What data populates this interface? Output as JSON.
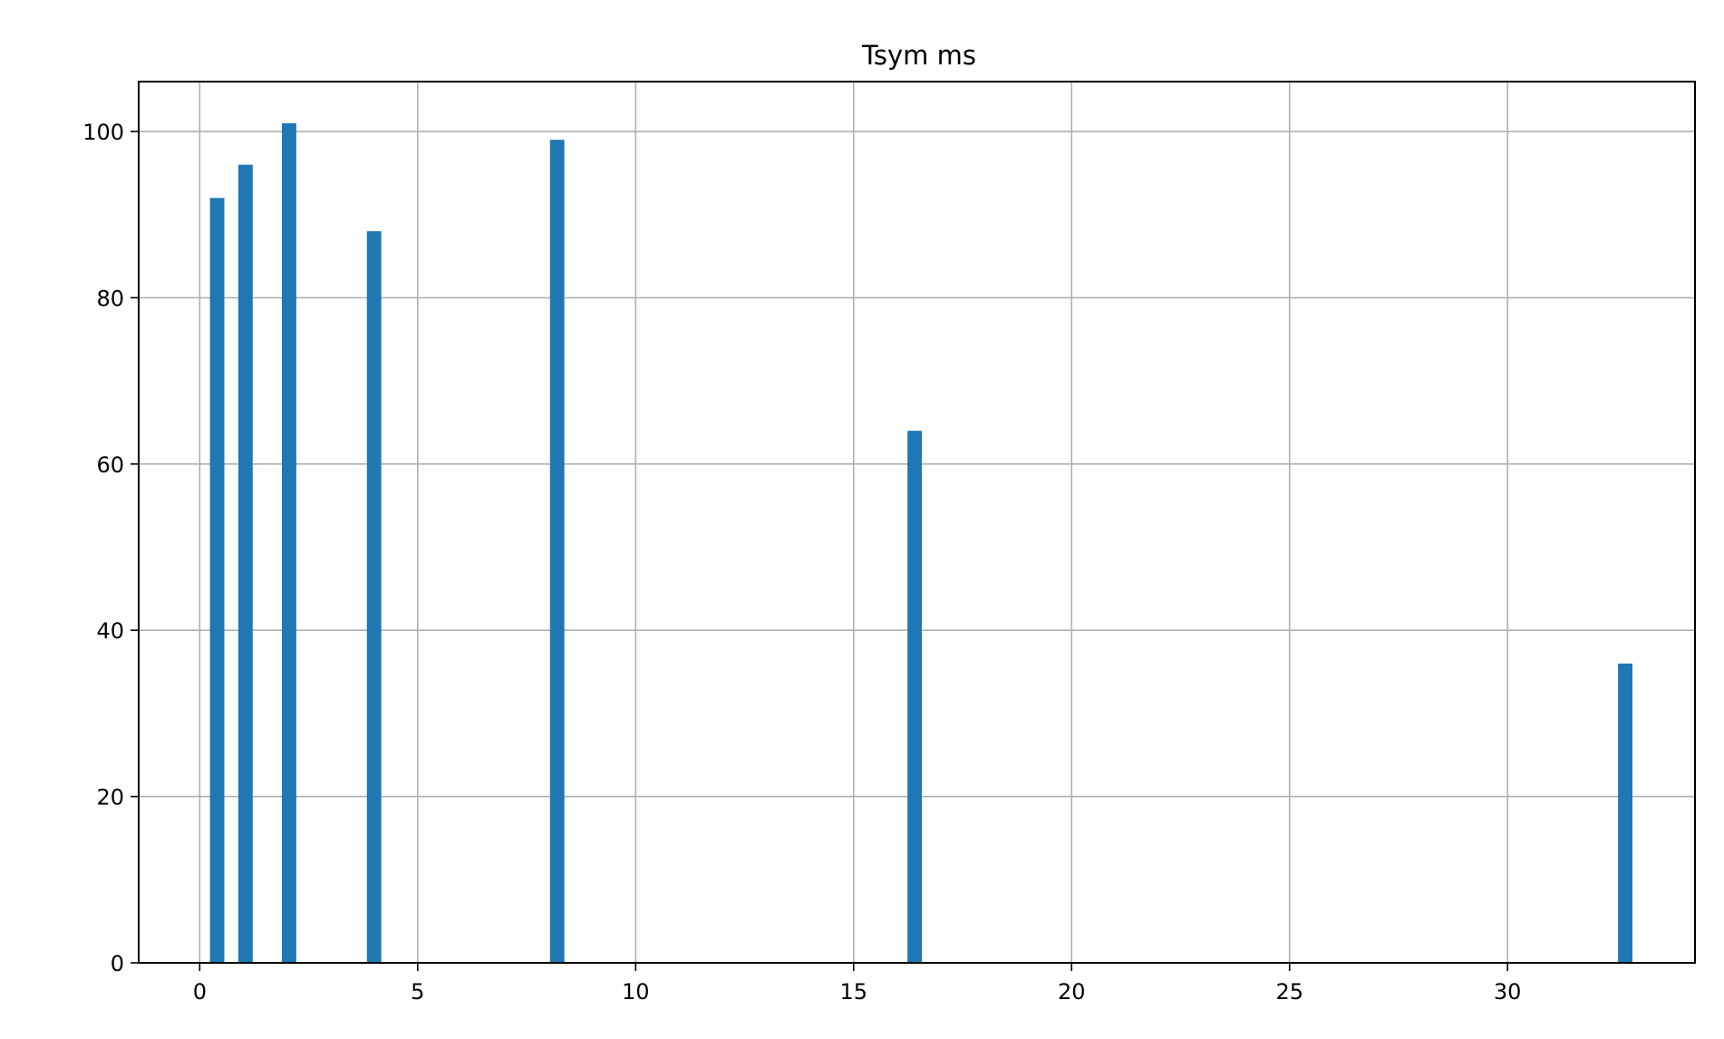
{
  "chart_data": {
    "type": "bar",
    "title": "Tsym ms",
    "xlabel": "",
    "ylabel": "",
    "x": [
      0.4,
      1.05,
      2.05,
      4.0,
      8.2,
      16.4,
      32.7
    ],
    "values": [
      92,
      96,
      101,
      88,
      99,
      64,
      36
    ],
    "bar_width": 0.33,
    "xlim": [
      -1.4,
      34.3
    ],
    "ylim": [
      0,
      106
    ],
    "xticks": [
      0,
      5,
      10,
      15,
      20,
      25,
      30
    ],
    "xtick_labels": [
      "0",
      "5",
      "10",
      "15",
      "20",
      "25",
      "30"
    ],
    "yticks": [
      0,
      20,
      40,
      60,
      80,
      100
    ],
    "ytick_labels": [
      "0",
      "20",
      "40",
      "60",
      "80",
      "100"
    ],
    "grid": true,
    "colors": {
      "bar": "#1f77b4",
      "grid": "#b0b0b0",
      "axis": "#000000"
    }
  }
}
